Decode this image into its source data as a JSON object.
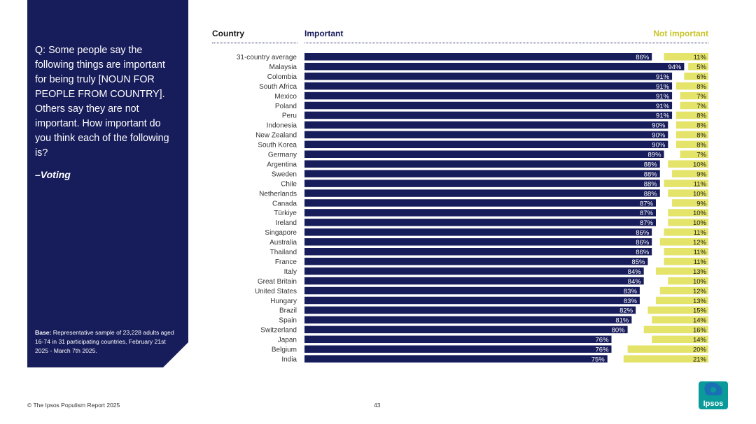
{
  "panel": {
    "question": "Q: Some people say the following things are important for being truly [NOUN FOR PEOPLE FROM COUNTRY]. Others say they are not important. How important do you think each of the following is?",
    "topic": "–Voting",
    "base_label": "Base:",
    "base_text": "Representative sample of 23,228 adults aged 16-74 in 31 participating countries, February 21st 2025 - March 7th 2025."
  },
  "footer": {
    "source": "© The Ipsos Populism Report 2025",
    "page": "43",
    "logo_text": "Ipsos"
  },
  "colors": {
    "important": "#171c5a",
    "not_important": "#e4e36a",
    "panel": "#171c5a",
    "logo": "#0a9a9a"
  },
  "chart_data": {
    "type": "bar",
    "orientation": "horizontal",
    "headers": {
      "category": "Country",
      "left": "Important",
      "right": "Not important"
    },
    "categories": [
      "31-country average",
      "Malaysia",
      "Colombia",
      "South Africa",
      "Mexico",
      "Poland",
      "Peru",
      "Indonesia",
      "New Zealand",
      "South Korea",
      "Germany",
      "Argentina",
      "Sweden",
      "Chile",
      "Netherlands",
      "Canada",
      "Türkiye",
      "Ireland",
      "Singapore",
      "Australia",
      "Thailand",
      "France",
      "Italy",
      "Great Britain",
      "United States",
      "Hungary",
      "Brazil",
      "Spain",
      "Switzerland",
      "Japan",
      "Belgium",
      "India"
    ],
    "series": [
      {
        "name": "Important",
        "values": [
          86,
          94,
          91,
          91,
          91,
          91,
          91,
          90,
          90,
          90,
          89,
          88,
          88,
          88,
          88,
          87,
          87,
          87,
          86,
          86,
          86,
          85,
          84,
          84,
          83,
          83,
          82,
          81,
          80,
          76,
          76,
          75
        ]
      },
      {
        "name": "Not important",
        "values": [
          11,
          5,
          6,
          8,
          7,
          7,
          8,
          8,
          8,
          8,
          7,
          10,
          9,
          11,
          10,
          9,
          10,
          10,
          11,
          12,
          11,
          11,
          13,
          10,
          12,
          13,
          15,
          14,
          16,
          14,
          20,
          21
        ]
      }
    ],
    "unit": "%"
  }
}
